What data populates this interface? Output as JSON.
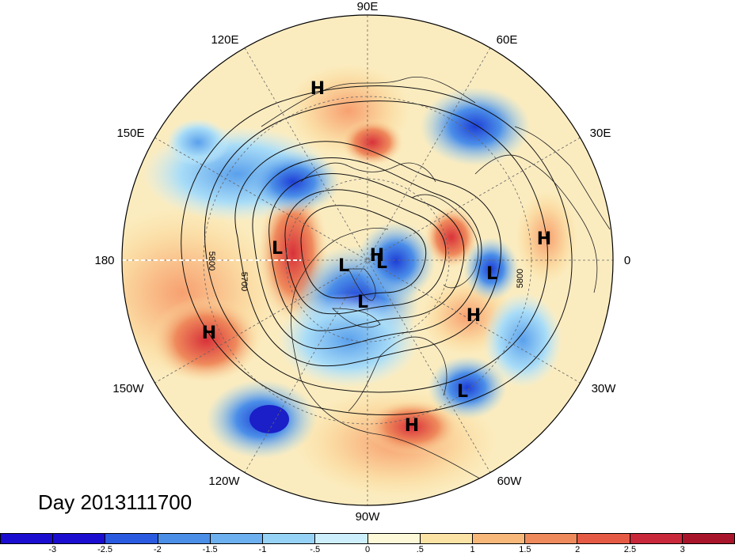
{
  "map": {
    "longitude_labels": [
      "90E",
      "60E",
      "30E",
      "0",
      "30W",
      "60W",
      "90W",
      "120W",
      "150W",
      "180",
      "150E",
      "120E"
    ],
    "pressure_centers": [
      "H",
      "H",
      "L",
      "L",
      "L",
      "L",
      "L",
      "H",
      "H",
      "L",
      "H",
      "H"
    ],
    "contour_labels": [
      "5800",
      "5700",
      "5800"
    ]
  },
  "day_label": "Day 2013111700",
  "colorbar": {
    "colors": [
      "#1a0dcf",
      "#2a5ae0",
      "#4b8ee8",
      "#6cb0ef",
      "#96d2f5",
      "#cdeefb",
      "#fdf8d8",
      "#fbe3a6",
      "#f7b87a",
      "#ef8a5c",
      "#e55a45",
      "#c8283a",
      "#a8152a"
    ],
    "tick_labels": [
      "-3",
      "-2.5",
      "-2",
      "-1.5",
      "-1",
      "-.5",
      "0",
      ".5",
      "1",
      "1.5",
      "2",
      "2.5",
      "3"
    ]
  }
}
